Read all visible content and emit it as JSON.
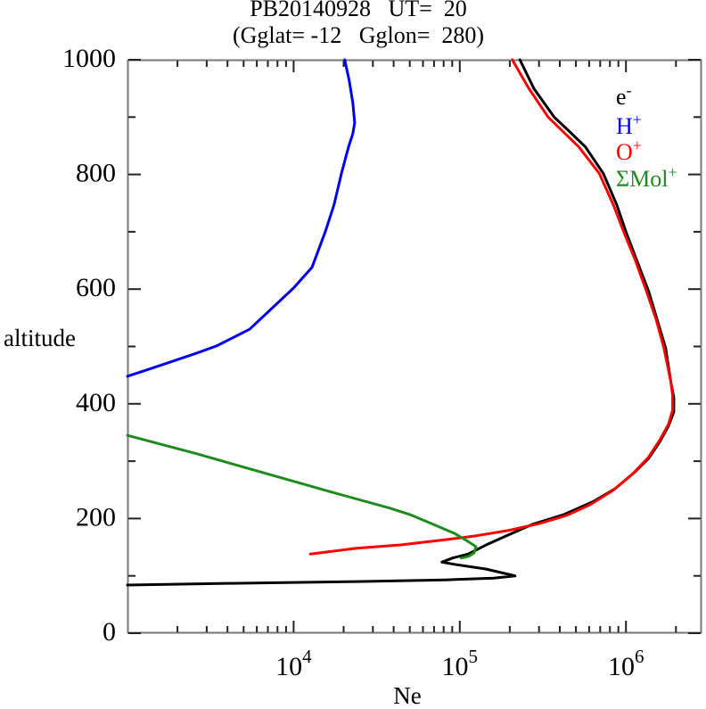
{
  "title": {
    "line1": "PB20140928   UT=  20",
    "line2": "(Gglat= -12   Gglon=  280)"
  },
  "axes": {
    "x": {
      "label": "Ne",
      "scale": "log",
      "min": 1000,
      "max": 2850000,
      "major": [
        10000,
        100000,
        1000000
      ],
      "major_labels": [
        {
          "base": "10",
          "sup": "4"
        },
        {
          "base": "10",
          "sup": "5"
        },
        {
          "base": "10",
          "sup": "6"
        }
      ],
      "minor": [
        2000,
        3000,
        4000,
        5000,
        6000,
        7000,
        8000,
        9000,
        20000,
        30000,
        40000,
        50000,
        60000,
        70000,
        80000,
        90000,
        200000,
        300000,
        400000,
        500000,
        600000,
        700000,
        800000,
        900000,
        2000000
      ]
    },
    "y": {
      "label": "altitude",
      "scale": "linear",
      "min": 0,
      "max": 1000,
      "major": [
        0,
        200,
        400,
        600,
        800,
        1000
      ],
      "major_labels": [
        "0",
        "200",
        "400",
        "600",
        "800",
        "1000"
      ],
      "minor": [
        100,
        300,
        500,
        700,
        900
      ]
    }
  },
  "legend": {
    "items": [
      {
        "name": "electron",
        "base": "e",
        "sup": "-",
        "color": "#000000"
      },
      {
        "name": "h-plus",
        "base": "H",
        "sup": "+",
        "color": "#0000ee"
      },
      {
        "name": "o-plus",
        "base": "O",
        "sup": "+",
        "color": "#ff0000"
      },
      {
        "name": "mol-plus",
        "base": "ΣMol",
        "sup": "+",
        "color": "#1f8b1f"
      }
    ]
  },
  "colors": {
    "frame": "#777777",
    "tick": "#222222",
    "background": "#ffffff"
  },
  "chart_data": {
    "type": "line",
    "title": "PB20140928 UT= 20 (Gglat= -12 Gglon= 280)",
    "xlabel": "Ne",
    "ylabel": "altitude",
    "x_scale": "log",
    "xlim": [
      1000,
      2850000
    ],
    "ylim": [
      0,
      1000
    ],
    "grid": false,
    "legend_position": "upper right inside, text only",
    "series": [
      {
        "name": "e-",
        "color": "#000000",
        "points": [
          [
            1000,
            84
          ],
          [
            4200,
            87
          ],
          [
            24000,
            90
          ],
          [
            82000,
            93
          ],
          [
            160000,
            96
          ],
          [
            215000,
            100
          ],
          [
            143000,
            112
          ],
          [
            93000,
            120
          ],
          [
            78000,
            124
          ],
          [
            90000,
            131
          ],
          [
            112000,
            138
          ],
          [
            149000,
            156
          ],
          [
            195000,
            171
          ],
          [
            275000,
            190
          ],
          [
            424000,
            207
          ],
          [
            630000,
            229
          ],
          [
            860000,
            252
          ],
          [
            1120000,
            280
          ],
          [
            1370000,
            305
          ],
          [
            1590000,
            333
          ],
          [
            1800000,
            361
          ],
          [
            1940000,
            386
          ],
          [
            1940000,
            411
          ],
          [
            1870000,
            435
          ],
          [
            1730000,
            498
          ],
          [
            1550000,
            544
          ],
          [
            1370000,
            596
          ],
          [
            1180000,
            645
          ],
          [
            1000000,
            700
          ],
          [
            880000,
            747
          ],
          [
            730000,
            802
          ],
          [
            570000,
            848
          ],
          [
            460000,
            874
          ],
          [
            370000,
            900
          ],
          [
            280000,
            949
          ],
          [
            230000,
            1000
          ]
        ]
      },
      {
        "name": "H+",
        "color": "#0000ee",
        "points": [
          [
            1000,
            448
          ],
          [
            1580,
            467
          ],
          [
            2590,
            488
          ],
          [
            3440,
            501
          ],
          [
            5430,
            530
          ],
          [
            10000,
            602
          ],
          [
            12900,
            638
          ],
          [
            15500,
            700
          ],
          [
            17500,
            747
          ],
          [
            19400,
            802
          ],
          [
            21400,
            848
          ],
          [
            22700,
            871
          ],
          [
            23300,
            890
          ],
          [
            22700,
            925
          ],
          [
            21600,
            964
          ],
          [
            20300,
            1000
          ]
        ]
      },
      {
        "name": "O+",
        "color": "#ff0000",
        "points": [
          [
            12600,
            138
          ],
          [
            23900,
            148
          ],
          [
            44000,
            154
          ],
          [
            77000,
            162
          ],
          [
            126000,
            170
          ],
          [
            195000,
            179
          ],
          [
            300000,
            191
          ],
          [
            435000,
            205
          ],
          [
            607000,
            224
          ],
          [
            836000,
            249
          ],
          [
            1100000,
            278
          ],
          [
            1360000,
            306
          ],
          [
            1590000,
            336
          ],
          [
            1800000,
            364
          ],
          [
            1910000,
            389
          ],
          [
            1910000,
            414
          ],
          [
            1860000,
            439
          ],
          [
            1690000,
            498
          ],
          [
            1520000,
            547
          ],
          [
            1330000,
            596
          ],
          [
            1140000,
            650
          ],
          [
            970000,
            700
          ],
          [
            840000,
            747
          ],
          [
            690000,
            802
          ],
          [
            520000,
            848
          ],
          [
            340000,
            900
          ],
          [
            260000,
            950
          ],
          [
            207000,
            1000
          ]
        ]
      },
      {
        "name": "ΣMol+",
        "color": "#1f8b1f",
        "points": [
          [
            1000,
            345
          ],
          [
            2600,
            313
          ],
          [
            6900,
            278
          ],
          [
            16500,
            247
          ],
          [
            38000,
            218
          ],
          [
            50000,
            207
          ],
          [
            73000,
            187
          ],
          [
            93000,
            174
          ],
          [
            112000,
            160
          ],
          [
            125000,
            151
          ],
          [
            122000,
            140
          ],
          [
            113000,
            134
          ],
          [
            102000,
            131
          ]
        ]
      }
    ]
  }
}
